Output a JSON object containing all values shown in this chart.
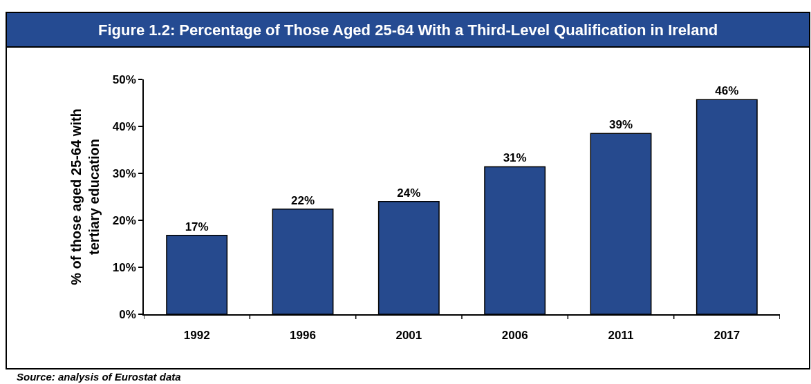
{
  "chart_data": {
    "type": "bar",
    "title": "Figure 1.2: Percentage of Those Aged 25-64 With a Third-Level Qualification in Ireland",
    "categories": [
      "1992",
      "1996",
      "2001",
      "2006",
      "2011",
      "2017"
    ],
    "values": [
      16.8,
      22.4,
      24.0,
      31.4,
      38.5,
      45.7
    ],
    "value_labels": [
      "17%",
      "22%",
      "24%",
      "31%",
      "39%",
      "46%"
    ],
    "color": "#264a8e",
    "ylabel": "% of those aged 25-64 with tertiary education",
    "ylim": [
      0,
      50
    ],
    "yticks": [
      {
        "value": 0,
        "label": "0%"
      },
      {
        "value": 10,
        "label": "10%"
      },
      {
        "value": 20,
        "label": "20%"
      },
      {
        "value": 30,
        "label": "30%"
      },
      {
        "value": 40,
        "label": "40%"
      },
      {
        "value": 50,
        "label": "50%"
      }
    ],
    "annotations": [
      "Source: analysis of Eurostat data"
    ]
  }
}
